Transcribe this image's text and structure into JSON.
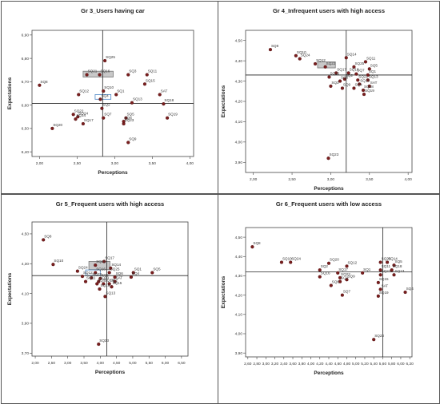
{
  "chart_data": [
    {
      "type": "scatter",
      "title": "Gr 3_Users having car",
      "xlabel": "Perceptions",
      "ylabel": "Expectations",
      "xlim": [
        1.9,
        4.05
      ],
      "ylim": [
        6.38,
        6.92
      ],
      "xticks": [
        "2,00",
        "2,50",
        "3,00",
        "3,50",
        "4,00"
      ],
      "xtick_values": [
        2.0,
        2.5,
        3.0,
        3.5,
        4.0
      ],
      "yticks": [
        "6,40",
        "6,50",
        "6,60",
        "6,70",
        "6,80",
        "6,90"
      ],
      "ytick_values": [
        6.4,
        6.5,
        6.6,
        6.7,
        6.8,
        6.9
      ],
      "hline": 6.607,
      "vline": 2.84,
      "highlights": [
        {
          "x0": 2.58,
          "x1": 2.98,
          "y0": 6.72,
          "y1": 6.745,
          "fill": "#c8c8c8"
        },
        {
          "x0": 2.74,
          "x1": 2.95,
          "y0": 6.625,
          "y1": 6.645,
          "fill": "none"
        }
      ],
      "points": [
        {
          "label": "SQ25",
          "x": 2.87,
          "y": 6.79
        },
        {
          "label": "SQ8",
          "x": 2.0,
          "y": 6.685
        },
        {
          "label": "SQ21",
          "x": 2.63,
          "y": 6.73
        },
        {
          "label": "SQ16",
          "x": 2.8,
          "y": 6.73
        },
        {
          "label": "SQ3",
          "x": 3.18,
          "y": 6.73
        },
        {
          "label": "SQ11",
          "x": 3.43,
          "y": 6.73
        },
        {
          "label": "SQ15",
          "x": 3.4,
          "y": 6.69
        },
        {
          "label": "SQ12",
          "x": 2.52,
          "y": 6.645
        },
        {
          "label": "SQ10",
          "x": 2.85,
          "y": 6.66
        },
        {
          "label": "SQ1",
          "x": 3.02,
          "y": 6.645
        },
        {
          "label": "SAT",
          "x": 3.6,
          "y": 6.645
        },
        {
          "label": "SQ4",
          "x": 2.81,
          "y": 6.625
        },
        {
          "label": "SQ13",
          "x": 3.23,
          "y": 6.61
        },
        {
          "label": "SQ18",
          "x": 3.65,
          "y": 6.605
        },
        {
          "label": "SQ2",
          "x": 2.83,
          "y": 6.586
        },
        {
          "label": "SQ22",
          "x": 2.45,
          "y": 6.56
        },
        {
          "label": "SQ24",
          "x": 2.51,
          "y": 6.55
        },
        {
          "label": "SQ14",
          "x": 2.48,
          "y": 6.54
        },
        {
          "label": "SQ7",
          "x": 2.85,
          "y": 6.545
        },
        {
          "label": "SQ17",
          "x": 2.58,
          "y": 6.52
        },
        {
          "label": "SQ5",
          "x": 3.15,
          "y": 6.545
        },
        {
          "label": "SQ19",
          "x": 3.7,
          "y": 6.545
        },
        {
          "label": "SQ6",
          "x": 3.12,
          "y": 6.53
        },
        {
          "label": "SQ20",
          "x": 2.17,
          "y": 6.5
        },
        {
          "label": "SQ23",
          "x": 3.12,
          "y": 6.52
        },
        {
          "label": "SQ9",
          "x": 3.18,
          "y": 6.44
        }
      ]
    },
    {
      "type": "scatter",
      "title": "Gr 4_Infrequent users with high access",
      "xlabel": "Perceptions",
      "ylabel": "Expectations",
      "xlim": [
        1.9,
        4.05
      ],
      "ylim": [
        3.85,
        4.55
      ],
      "xticks": [
        "2,00",
        "2,50",
        "3,00",
        "3,50",
        "4,00"
      ],
      "xtick_values": [
        2.0,
        2.5,
        3.0,
        3.5,
        4.0
      ],
      "yticks": [
        "3,90",
        "4,00",
        "4,10",
        "4,20",
        "4,30",
        "4,40",
        "4,50"
      ],
      "ytick_values": [
        3.9,
        4.0,
        4.1,
        4.2,
        4.3,
        4.4,
        4.5
      ],
      "hline": 4.33,
      "vline": 3.2,
      "highlights": [
        {
          "x0": 2.83,
          "x1": 3.06,
          "y0": 4.365,
          "y1": 4.395,
          "fill": "#c8c8c8"
        }
      ],
      "points": [
        {
          "label": "SQ8",
          "x": 2.22,
          "y": 4.455
        },
        {
          "label": "SQ10",
          "x": 2.55,
          "y": 4.425
        },
        {
          "label": "SQ24",
          "x": 2.6,
          "y": 4.41
        },
        {
          "label": "SQ14",
          "x": 3.2,
          "y": 4.415
        },
        {
          "label": "SQ11",
          "x": 3.45,
          "y": 4.395
        },
        {
          "label": "SQ12",
          "x": 2.8,
          "y": 4.385
        },
        {
          "label": "SQ22",
          "x": 2.93,
          "y": 4.37
        },
        {
          "label": "SQ25",
          "x": 3.3,
          "y": 4.37
        },
        {
          "label": "SQ5",
          "x": 3.5,
          "y": 4.36
        },
        {
          "label": "SQ17",
          "x": 3.07,
          "y": 4.34
        },
        {
          "label": "SQ16",
          "x": 3.23,
          "y": 4.34
        },
        {
          "label": "SQ7",
          "x": 3.33,
          "y": 4.335
        },
        {
          "label": "SQ1",
          "x": 3.48,
          "y": 4.33
        },
        {
          "label": "SQ20",
          "x": 2.98,
          "y": 4.32
        },
        {
          "label": "SQ2",
          "x": 3.18,
          "y": 4.31
        },
        {
          "label": "SQ21",
          "x": 3.35,
          "y": 4.305
        },
        {
          "label": "SQ13",
          "x": 3.48,
          "y": 4.305
        },
        {
          "label": "SQ6",
          "x": 3.12,
          "y": 4.3
        },
        {
          "label": "SQ15",
          "x": 3.37,
          "y": 4.285
        },
        {
          "label": "SQ3",
          "x": 3.0,
          "y": 4.275
        },
        {
          "label": "SAT",
          "x": 3.5,
          "y": 4.275
        },
        {
          "label": "SQ9",
          "x": 3.15,
          "y": 4.265
        },
        {
          "label": "SQ4",
          "x": 3.3,
          "y": 4.265
        },
        {
          "label": "SQ18",
          "x": 3.42,
          "y": 4.255
        },
        {
          "label": "SQ19",
          "x": 3.43,
          "y": 4.235
        },
        {
          "label": "SQ23",
          "x": 2.97,
          "y": 3.92
        }
      ]
    },
    {
      "type": "scatter",
      "title": "Gr 5_Frequent users with high access",
      "xlabel": "Perceptions",
      "ylabel": "Expectations",
      "xlim": [
        1.9,
        6.7
      ],
      "ylim": [
        3.68,
        4.58
      ],
      "xticks": [
        "2,00",
        "2,50",
        "3,00",
        "3,50",
        "4,00",
        "4,50",
        "5,00",
        "5,50",
        "6,00",
        "6,50"
      ],
      "xtick_values": [
        2.0,
        2.5,
        3.0,
        3.5,
        4.0,
        4.5,
        5.0,
        5.5,
        6.0,
        6.5
      ],
      "yticks": [
        "3,70",
        "3,90",
        "4,10",
        "4,30",
        "4,50"
      ],
      "ytick_values": [
        3.7,
        3.9,
        4.1,
        4.3,
        4.5
      ],
      "hline": 4.22,
      "vline": 4.2,
      "highlights": [
        {
          "x0": 3.65,
          "x1": 4.3,
          "y0": 4.26,
          "y1": 4.315,
          "fill": "#c8c8c8"
        },
        {
          "x0": 3.55,
          "x1": 4.0,
          "y0": 4.222,
          "y1": 4.258,
          "fill": "none"
        }
      ],
      "points": [
        {
          "label": "SQ8",
          "x": 2.25,
          "y": 4.46
        },
        {
          "label": "SQ10",
          "x": 2.55,
          "y": 4.295
        },
        {
          "label": "SQ24",
          "x": 3.3,
          "y": 4.25
        },
        {
          "label": "SQ17",
          "x": 4.12,
          "y": 4.315
        },
        {
          "label": "SQ21",
          "x": 3.85,
          "y": 4.29
        },
        {
          "label": "SQ14",
          "x": 4.32,
          "y": 4.27
        },
        {
          "label": "SQ1",
          "x": 5.02,
          "y": 4.24
        },
        {
          "label": "SQ5",
          "x": 5.6,
          "y": 4.24
        },
        {
          "label": "SQ12",
          "x": 3.45,
          "y": 4.215
        },
        {
          "label": "SQ25",
          "x": 4.28,
          "y": 4.24
        },
        {
          "label": "SQ16",
          "x": 3.85,
          "y": 4.24
        },
        {
          "label": "SQ4",
          "x": 4.95,
          "y": 4.21
        },
        {
          "label": "SQ22",
          "x": 3.73,
          "y": 4.205
        },
        {
          "label": "SQ9",
          "x": 4.0,
          "y": 4.2
        },
        {
          "label": "SQ6",
          "x": 4.45,
          "y": 4.21
        },
        {
          "label": "SQ11",
          "x": 3.55,
          "y": 4.18
        },
        {
          "label": "SQ20",
          "x": 3.95,
          "y": 4.18
        },
        {
          "label": "SAT",
          "x": 4.45,
          "y": 4.18
        },
        {
          "label": "SQ3",
          "x": 3.9,
          "y": 4.165
        },
        {
          "label": "SQ18",
          "x": 4.1,
          "y": 4.165
        },
        {
          "label": "SQ2",
          "x": 4.28,
          "y": 4.165
        },
        {
          "label": "SQ15",
          "x": 4.35,
          "y": 4.145
        },
        {
          "label": "SQ19",
          "x": 3.98,
          "y": 4.13
        },
        {
          "label": "SQ13",
          "x": 4.15,
          "y": 4.08
        },
        {
          "label": "SQ23",
          "x": 3.95,
          "y": 3.76
        }
      ]
    },
    {
      "type": "scatter",
      "title": "Gr 6_Frequent users with low access",
      "xlabel": "Perceptions",
      "ylabel": "Expectations",
      "xlim": [
        2.55,
        6.25
      ],
      "ylim": [
        3.88,
        4.55
      ],
      "xticks": [
        "2,60",
        "2,80",
        "3,00",
        "3,20",
        "3,40",
        "3,60",
        "3,80",
        "4,00",
        "4,20",
        "4,40",
        "4,60",
        "4,80",
        "5,00",
        "5,20",
        "5,40",
        "5,60",
        "5,80",
        "6,00",
        "6,20"
      ],
      "xtick_values": [
        2.6,
        2.8,
        3.0,
        3.2,
        3.4,
        3.6,
        3.8,
        4.0,
        4.2,
        4.4,
        4.6,
        4.8,
        5.0,
        5.2,
        5.4,
        5.6,
        5.8,
        6.0,
        6.2
      ],
      "yticks": [
        "3,90",
        "4,00",
        "4,10",
        "4,20",
        "4,30",
        "4,40",
        "4,50"
      ],
      "ytick_values": [
        3.9,
        4.0,
        4.1,
        4.2,
        4.3,
        4.4,
        4.5
      ],
      "hline": 4.32,
      "vline": 5.6,
      "highlights": [],
      "points": [
        {
          "label": "SQ8",
          "x": 2.7,
          "y": 4.45
        },
        {
          "label": "SQ10",
          "x": 3.35,
          "y": 4.37
        },
        {
          "label": "SQ24",
          "x": 3.55,
          "y": 4.37
        },
        {
          "label": "SQ25",
          "x": 5.55,
          "y": 4.37
        },
        {
          "label": "SQ14",
          "x": 5.7,
          "y": 4.37
        },
        {
          "label": "SQ20",
          "x": 4.4,
          "y": 4.365
        },
        {
          "label": "SQ12",
          "x": 4.8,
          "y": 4.35
        },
        {
          "label": "SQ5",
          "x": 5.85,
          "y": 4.355
        },
        {
          "label": "SQ2",
          "x": 4.2,
          "y": 4.33
        },
        {
          "label": "SQ11",
          "x": 5.55,
          "y": 4.33
        },
        {
          "label": "SQ18",
          "x": 5.8,
          "y": 4.33
        },
        {
          "label": "SQ17",
          "x": 4.6,
          "y": 4.315
        },
        {
          "label": "SQ1",
          "x": 5.15,
          "y": 4.315
        },
        {
          "label": "SQ21",
          "x": 5.55,
          "y": 4.305
        },
        {
          "label": "SQ13",
          "x": 5.85,
          "y": 4.305
        },
        {
          "label": "SQ16",
          "x": 4.2,
          "y": 4.295
        },
        {
          "label": "SQ22",
          "x": 4.65,
          "y": 4.29
        },
        {
          "label": "SQ9",
          "x": 4.8,
          "y": 4.28
        },
        {
          "label": "SQ3",
          "x": 4.65,
          "y": 4.27
        },
        {
          "label": "SQ15",
          "x": 5.5,
          "y": 4.265
        },
        {
          "label": "SQ6",
          "x": 4.45,
          "y": 4.25
        },
        {
          "label": "SAT",
          "x": 5.55,
          "y": 4.23
        },
        {
          "label": "SQ4",
          "x": 6.1,
          "y": 4.215
        },
        {
          "label": "SQ7",
          "x": 4.7,
          "y": 4.2
        },
        {
          "label": "SQ19",
          "x": 5.5,
          "y": 4.195
        },
        {
          "label": "SQ23",
          "x": 5.4,
          "y": 3.97
        }
      ]
    }
  ]
}
